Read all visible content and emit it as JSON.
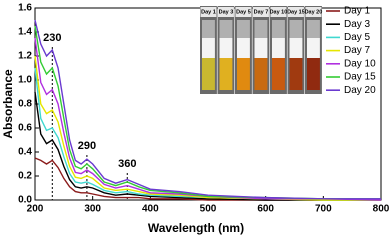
{
  "chart_data": {
    "type": "line",
    "x_label": "Wavelength (nm)",
    "y_label": "Absorbance",
    "x": [
      200,
      210,
      220,
      230,
      240,
      250,
      260,
      270,
      280,
      290,
      300,
      320,
      340,
      360,
      380,
      400,
      450,
      500,
      600,
      700,
      800
    ],
    "series": [
      {
        "name": "Day 1",
        "color": "#8b1c1c",
        "values": [
          0.35,
          0.33,
          0.3,
          0.33,
          0.27,
          0.18,
          0.11,
          0.07,
          0.06,
          0.06,
          0.05,
          0.03,
          0.02,
          0.02,
          0.02,
          0.01,
          0.01,
          0,
          0,
          0,
          0
        ]
      },
      {
        "name": "Day 3",
        "color": "#000000",
        "values": [
          0.9,
          0.55,
          0.47,
          0.5,
          0.42,
          0.28,
          0.17,
          0.11,
          0.1,
          0.11,
          0.1,
          0.06,
          0.04,
          0.05,
          0.04,
          0.03,
          0.02,
          0.01,
          0,
          0,
          0
        ]
      },
      {
        "name": "Day 5",
        "color": "#40d8d0",
        "values": [
          1.1,
          0.68,
          0.58,
          0.6,
          0.52,
          0.36,
          0.22,
          0.15,
          0.14,
          0.15,
          0.13,
          0.08,
          0.06,
          0.07,
          0.05,
          0.04,
          0.03,
          0.02,
          0.01,
          0,
          0
        ]
      },
      {
        "name": "Day 7",
        "color": "#e6e600",
        "values": [
          1.2,
          0.8,
          0.72,
          0.75,
          0.65,
          0.45,
          0.28,
          0.19,
          0.18,
          0.2,
          0.18,
          0.1,
          0.08,
          0.09,
          0.07,
          0.05,
          0.04,
          0.02,
          0.01,
          0,
          0
        ]
      },
      {
        "name": "Day 10",
        "color": "#b030e0",
        "values": [
          1.35,
          0.98,
          0.88,
          0.92,
          0.8,
          0.56,
          0.35,
          0.23,
          0.22,
          0.25,
          0.22,
          0.13,
          0.1,
          0.12,
          0.09,
          0.06,
          0.05,
          0.03,
          0.01,
          0.01,
          0
        ]
      },
      {
        "name": "Day 15",
        "color": "#33cc33",
        "values": [
          1.45,
          1.15,
          1.05,
          1.1,
          0.95,
          0.68,
          0.42,
          0.28,
          0.26,
          0.3,
          0.26,
          0.15,
          0.12,
          0.15,
          0.11,
          0.08,
          0.06,
          0.03,
          0.02,
          0.01,
          0.01
        ]
      },
      {
        "name": "Day 20",
        "color": "#6a3ad0",
        "values": [
          1.5,
          1.3,
          1.2,
          1.25,
          1.1,
          0.8,
          0.5,
          0.33,
          0.3,
          0.34,
          0.3,
          0.18,
          0.14,
          0.17,
          0.13,
          0.09,
          0.07,
          0.04,
          0.02,
          0.01,
          0.01
        ]
      }
    ],
    "xlim": [
      200,
      800
    ],
    "xticks": [
      200,
      300,
      400,
      500,
      600,
      700,
      800
    ],
    "ylim": [
      0,
      1.6
    ],
    "yticks": [
      {
        "value": 0,
        "label": "0.0"
      },
      0.2,
      0.4,
      0.6,
      0.8,
      {
        "value": 1,
        "label": "1.0"
      },
      1.2,
      1.4,
      1.6
    ],
    "annotations": [
      {
        "text": "230",
        "x": 230,
        "y": 1.35
      },
      {
        "text": "290",
        "x": 290,
        "y": 0.45
      },
      {
        "text": "360",
        "x": 360,
        "y": 0.3
      }
    ],
    "legend": "upper right",
    "inset_labels": [
      "Day 1",
      "Day 3",
      "Day 5",
      "Day 7",
      "Day 10",
      "Day 15",
      "Day 20"
    ]
  }
}
